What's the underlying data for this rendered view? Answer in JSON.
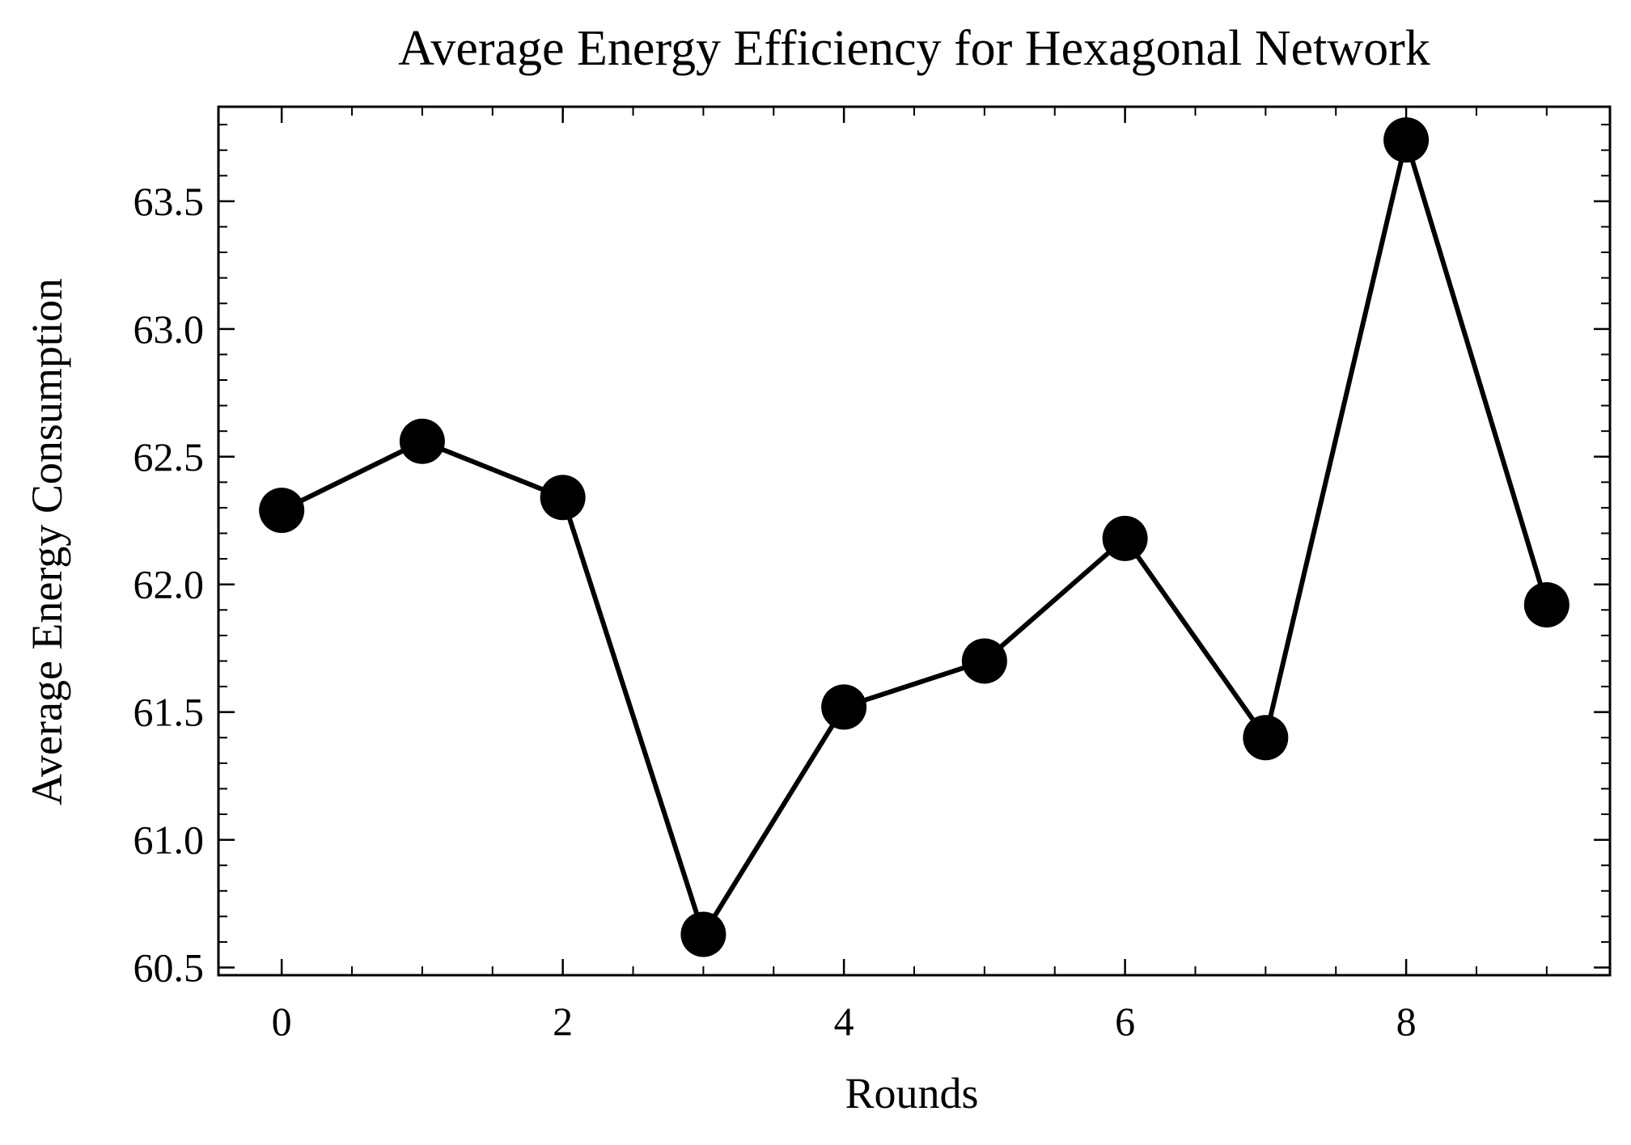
{
  "chart_data": {
    "type": "line",
    "title": "Average Energy Efficiency for Hexagonal Network",
    "xlabel": "Rounds",
    "ylabel": "Average Energy Consumption",
    "xlim": [
      -0.45,
      9.45
    ],
    "ylim": [
      60.47,
      63.87
    ],
    "xticks": [
      0,
      2,
      4,
      6,
      8
    ],
    "xtick_labels": [
      "0",
      "2",
      "4",
      "6",
      "8"
    ],
    "x_minor_step": 0.5,
    "yticks": [
      60.5,
      61.0,
      61.5,
      62.0,
      62.5,
      63.0,
      63.5
    ],
    "ytick_labels": [
      "60.5",
      "61.0",
      "61.5",
      "62.0",
      "62.5",
      "63.0",
      "63.5"
    ],
    "y_minor_step": 0.1,
    "grid": false,
    "series": [
      {
        "x": [
          0,
          1,
          2,
          3,
          4,
          5,
          6,
          7,
          8,
          9
        ],
        "values": [
          62.29,
          62.56,
          62.34,
          60.63,
          61.52,
          61.7,
          62.18,
          61.4,
          63.74,
          61.92
        ],
        "color": "#000000",
        "marker": "circle"
      }
    ]
  }
}
